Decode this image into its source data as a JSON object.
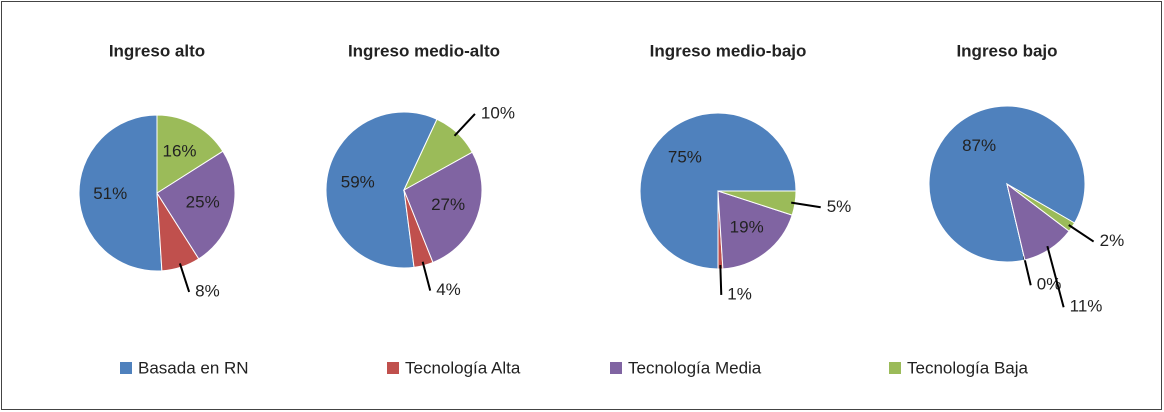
{
  "chart_data": [
    {
      "type": "pie",
      "title": "Ingreso alto",
      "values": [
        51,
        8,
        25,
        16
      ],
      "value_labels": [
        "51%",
        "8%",
        "25%",
        "16%"
      ],
      "start_angle": 0
    },
    {
      "type": "pie",
      "title": "Ingreso medio-alto",
      "values": [
        59,
        4,
        27,
        10
      ],
      "value_labels": [
        "59%",
        "4%",
        "27%",
        "10%"
      ],
      "start_angle": 25
    },
    {
      "type": "pie",
      "title": "Ingreso medio-bajo",
      "values": [
        75,
        1,
        19,
        5
      ],
      "value_labels": [
        "75%",
        "1%",
        "19%",
        "5%"
      ],
      "start_angle": 90
    },
    {
      "type": "pie",
      "title": "Ingreso bajo",
      "values": [
        87,
        0,
        11,
        2
      ],
      "value_labels": [
        "87%",
        "0%",
        "11%",
        "2%"
      ],
      "start_angle": 120
    }
  ],
  "legend": {
    "position": "bottom",
    "categories": [
      "Basada en RN",
      "Tecnología Alta",
      "Tecnología Media",
      "Tecnología Baja"
    ],
    "colors": [
      "#4f81bd",
      "#c0504d",
      "#8064a2",
      "#9bbb59"
    ]
  }
}
